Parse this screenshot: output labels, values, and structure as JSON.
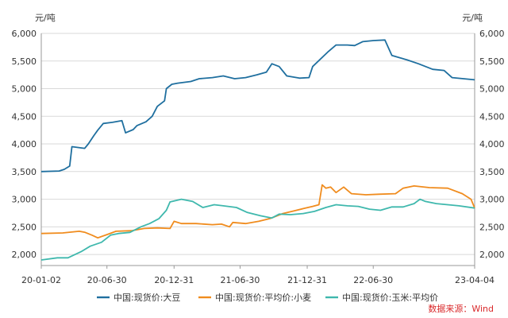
{
  "chart_data": {
    "type": "line",
    "unit_left": "元/吨",
    "unit_right": "元/吨",
    "ylim": [
      1800,
      6000
    ],
    "y_ticks": [
      2000,
      2500,
      3000,
      3500,
      4000,
      4500,
      5000,
      5500,
      6000
    ],
    "y_tick_labels": [
      "2,000",
      "2,500",
      "3,000",
      "3,500",
      "4,000",
      "4,500",
      "5,000",
      "5,500",
      "6,000"
    ],
    "x_range": [
      "2020-01-02",
      "2023-04-04"
    ],
    "x_ticks": [
      "2020-01-02",
      "2020-06-30",
      "2020-12-31",
      "2021-06-30",
      "2021-12-31",
      "2022-06-30",
      "2023-04-04"
    ],
    "x_tick_labels": [
      "20-01-02",
      "20-06-30",
      "20-12-31",
      "21-06-30",
      "21-12-31",
      "22-06-30",
      "23-04-04"
    ],
    "grid": "horizontal",
    "legend_position": "bottom",
    "source": "数据来源：Wind",
    "series": [
      {
        "name": "中国:现货价:大豆",
        "color": "#1f6f9f",
        "points": [
          [
            "2020-01-02",
            3500
          ],
          [
            "2020-02-20",
            3510
          ],
          [
            "2020-03-05",
            3540
          ],
          [
            "2020-03-20",
            3600
          ],
          [
            "2020-03-26",
            3950
          ],
          [
            "2020-04-30",
            3920
          ],
          [
            "2020-05-10",
            4000
          ],
          [
            "2020-05-25",
            4150
          ],
          [
            "2020-06-05",
            4250
          ],
          [
            "2020-06-20",
            4370
          ],
          [
            "2020-07-15",
            4390
          ],
          [
            "2020-08-10",
            4420
          ],
          [
            "2020-08-20",
            4200
          ],
          [
            "2020-09-10",
            4260
          ],
          [
            "2020-09-20",
            4330
          ],
          [
            "2020-10-15",
            4400
          ],
          [
            "2020-11-01",
            4500
          ],
          [
            "2020-11-15",
            4680
          ],
          [
            "2020-12-05",
            4780
          ],
          [
            "2020-12-10",
            5000
          ],
          [
            "2020-12-25",
            5080
          ],
          [
            "2021-01-10",
            5100
          ],
          [
            "2021-02-15",
            5130
          ],
          [
            "2021-03-10",
            5180
          ],
          [
            "2021-04-15",
            5200
          ],
          [
            "2021-05-15",
            5230
          ],
          [
            "2021-06-15",
            5180
          ],
          [
            "2021-07-15",
            5200
          ],
          [
            "2021-08-15",
            5250
          ],
          [
            "2021-09-10",
            5300
          ],
          [
            "2021-09-25",
            5450
          ],
          [
            "2021-10-15",
            5400
          ],
          [
            "2021-11-05",
            5230
          ],
          [
            "2021-12-10",
            5190
          ],
          [
            "2022-01-05",
            5200
          ],
          [
            "2022-01-15",
            5400
          ],
          [
            "2022-02-25",
            5660
          ],
          [
            "2022-03-20",
            5790
          ],
          [
            "2022-04-20",
            5790
          ],
          [
            "2022-05-10",
            5780
          ],
          [
            "2022-06-01",
            5850
          ],
          [
            "2022-07-01",
            5870
          ],
          [
            "2022-08-01",
            5880
          ],
          [
            "2022-08-20",
            5600
          ],
          [
            "2022-10-01",
            5520
          ],
          [
            "2022-11-01",
            5450
          ],
          [
            "2022-12-10",
            5350
          ],
          [
            "2023-01-10",
            5330
          ],
          [
            "2023-02-01",
            5200
          ],
          [
            "2023-04-04",
            5160
          ]
        ]
      },
      {
        "name": "中国:现货价:平均价:小麦",
        "color": "#f08c1e",
        "points": [
          [
            "2020-01-02",
            2380
          ],
          [
            "2020-03-01",
            2390
          ],
          [
            "2020-04-15",
            2420
          ],
          [
            "2020-05-01",
            2400
          ],
          [
            "2020-05-20",
            2350
          ],
          [
            "2020-06-05",
            2300
          ],
          [
            "2020-06-30",
            2360
          ],
          [
            "2020-07-25",
            2420
          ],
          [
            "2020-09-05",
            2430
          ],
          [
            "2020-10-10",
            2470
          ],
          [
            "2020-11-15",
            2480
          ],
          [
            "2020-12-20",
            2470
          ],
          [
            "2020-12-31",
            2600
          ],
          [
            "2021-01-20",
            2560
          ],
          [
            "2021-03-01",
            2560
          ],
          [
            "2021-04-15",
            2540
          ],
          [
            "2021-05-10",
            2550
          ],
          [
            "2021-06-01",
            2500
          ],
          [
            "2021-06-10",
            2580
          ],
          [
            "2021-07-15",
            2560
          ],
          [
            "2021-08-20",
            2600
          ],
          [
            "2021-09-20",
            2650
          ],
          [
            "2021-10-25",
            2740
          ],
          [
            "2021-11-25",
            2790
          ],
          [
            "2021-12-20",
            2830
          ],
          [
            "2022-01-15",
            2870
          ],
          [
            "2022-02-01",
            2900
          ],
          [
            "2022-02-10",
            3260
          ],
          [
            "2022-02-20",
            3200
          ],
          [
            "2022-03-05",
            3220
          ],
          [
            "2022-03-20",
            3120
          ],
          [
            "2022-04-10",
            3220
          ],
          [
            "2022-05-01",
            3100
          ],
          [
            "2022-06-10",
            3080
          ],
          [
            "2022-07-15",
            3090
          ],
          [
            "2022-08-30",
            3100
          ],
          [
            "2022-09-20",
            3200
          ],
          [
            "2022-10-20",
            3240
          ],
          [
            "2022-12-01",
            3210
          ],
          [
            "2023-01-20",
            3200
          ],
          [
            "2023-03-01",
            3100
          ],
          [
            "2023-03-25",
            3000
          ],
          [
            "2023-04-04",
            2840
          ]
        ]
      },
      {
        "name": "中国:现货价:玉米:平均价",
        "color": "#3fb8ad",
        "points": [
          [
            "2020-01-02",
            1900
          ],
          [
            "2020-02-15",
            1940
          ],
          [
            "2020-03-15",
            1940
          ],
          [
            "2020-04-20",
            2050
          ],
          [
            "2020-05-15",
            2150
          ],
          [
            "2020-06-15",
            2220
          ],
          [
            "2020-07-10",
            2350
          ],
          [
            "2020-08-01",
            2380
          ],
          [
            "2020-09-01",
            2400
          ],
          [
            "2020-10-01",
            2500
          ],
          [
            "2020-10-25",
            2560
          ],
          [
            "2020-11-20",
            2650
          ],
          [
            "2020-12-10",
            2800
          ],
          [
            "2020-12-20",
            2950
          ],
          [
            "2021-01-20",
            3000
          ],
          [
            "2021-02-20",
            2960
          ],
          [
            "2021-03-20",
            2850
          ],
          [
            "2021-04-20",
            2900
          ],
          [
            "2021-05-15",
            2880
          ],
          [
            "2021-06-20",
            2850
          ],
          [
            "2021-07-20",
            2760
          ],
          [
            "2021-08-25",
            2700
          ],
          [
            "2021-09-25",
            2660
          ],
          [
            "2021-10-15",
            2730
          ],
          [
            "2021-11-15",
            2720
          ],
          [
            "2021-12-20",
            2740
          ],
          [
            "2022-01-20",
            2780
          ],
          [
            "2022-02-20",
            2850
          ],
          [
            "2022-03-20",
            2900
          ],
          [
            "2022-04-20",
            2880
          ],
          [
            "2022-05-20",
            2870
          ],
          [
            "2022-06-20",
            2820
          ],
          [
            "2022-07-20",
            2800
          ],
          [
            "2022-08-20",
            2860
          ],
          [
            "2022-09-20",
            2860
          ],
          [
            "2022-10-20",
            2920
          ],
          [
            "2022-11-05",
            3000
          ],
          [
            "2022-11-20",
            2960
          ],
          [
            "2022-12-20",
            2920
          ],
          [
            "2023-01-20",
            2900
          ],
          [
            "2023-02-20",
            2880
          ],
          [
            "2023-04-04",
            2840
          ]
        ]
      }
    ]
  }
}
